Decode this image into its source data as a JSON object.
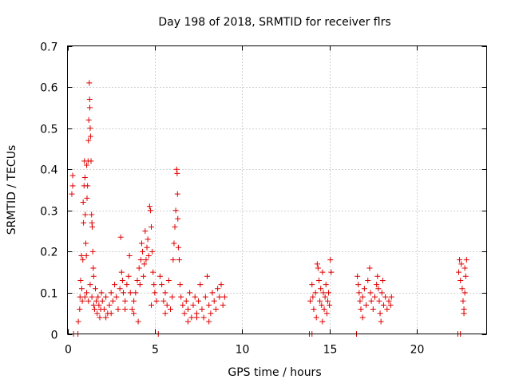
{
  "chart_data": {
    "type": "scatter",
    "title": "Day 198 of 2018, SRMTID for receiver flrs",
    "xlabel": "GPS time / hours",
    "ylabel": "SRMTID / TECUs",
    "xlim": [
      0,
      24
    ],
    "ylim": [
      0,
      0.7
    ],
    "xticks": [
      0,
      5,
      10,
      15,
      20
    ],
    "yticks": [
      0,
      0.1,
      0.2,
      0.3,
      0.4,
      0.5,
      0.6,
      0.7
    ],
    "grid": true,
    "legend": "none",
    "marker": "plus",
    "color": "#e00000",
    "series": [
      {
        "name": "SRMTID",
        "points": [
          [
            0.25,
            0.34
          ],
          [
            0.3,
            0.385
          ],
          [
            0.3,
            0.36
          ],
          [
            0.35,
            0.0
          ],
          [
            0.6,
            0.0
          ],
          [
            0.62,
            0.03
          ],
          [
            0.7,
            0.06
          ],
          [
            0.72,
            0.09
          ],
          [
            0.75,
            0.13
          ],
          [
            0.8,
            0.19
          ],
          [
            0.82,
            0.11
          ],
          [
            0.85,
            0.08
          ],
          [
            0.88,
            0.18
          ],
          [
            0.9,
            0.32
          ],
          [
            0.92,
            0.27
          ],
          [
            0.95,
            0.36
          ],
          [
            0.97,
            0.42
          ],
          [
            1.0,
            0.38
          ],
          [
            1.02,
            0.29
          ],
          [
            1.05,
            0.22
          ],
          [
            1.08,
            0.19
          ],
          [
            1.1,
            0.41
          ],
          [
            1.12,
            0.33
          ],
          [
            1.15,
            0.36
          ],
          [
            1.18,
            0.42
          ],
          [
            1.2,
            0.47
          ],
          [
            1.22,
            0.52
          ],
          [
            1.25,
            0.61
          ],
          [
            1.27,
            0.57
          ],
          [
            1.28,
            0.55
          ],
          [
            1.3,
            0.5
          ],
          [
            1.32,
            0.48
          ],
          [
            1.35,
            0.42
          ],
          [
            1.38,
            0.29
          ],
          [
            1.4,
            0.27
          ],
          [
            1.42,
            0.26
          ],
          [
            1.45,
            0.2
          ],
          [
            1.48,
            0.16
          ],
          [
            1.5,
            0.14
          ],
          [
            1.0,
            0.09
          ],
          [
            1.1,
            0.1
          ],
          [
            1.2,
            0.08
          ],
          [
            1.3,
            0.12
          ],
          [
            1.4,
            0.09
          ],
          [
            1.5,
            0.07
          ],
          [
            1.55,
            0.06
          ],
          [
            1.6,
            0.11
          ],
          [
            1.65,
            0.08
          ],
          [
            1.7,
            0.05
          ],
          [
            1.75,
            0.09
          ],
          [
            1.8,
            0.07
          ],
          [
            1.85,
            0.04
          ],
          [
            1.9,
            0.06
          ],
          [
            1.95,
            0.1
          ],
          [
            2.0,
            0.08
          ],
          [
            2.1,
            0.06
          ],
          [
            2.2,
            0.09
          ],
          [
            2.3,
            0.05
          ],
          [
            2.4,
            0.07
          ],
          [
            2.5,
            0.1
          ],
          [
            2.6,
            0.08
          ],
          [
            2.7,
            0.12
          ],
          [
            2.8,
            0.09
          ],
          [
            2.9,
            0.06
          ],
          [
            3.0,
            0.11
          ],
          [
            3.05,
            0.235
          ],
          [
            3.1,
            0.15
          ],
          [
            3.15,
            0.13
          ],
          [
            3.2,
            0.1
          ],
          [
            3.3,
            0.08
          ],
          [
            3.4,
            0.12
          ],
          [
            3.5,
            0.14
          ],
          [
            3.55,
            0.19
          ],
          [
            3.6,
            0.1
          ],
          [
            3.7,
            0.06
          ],
          [
            3.8,
            0.08
          ],
          [
            3.9,
            0.1
          ],
          [
            4.0,
            0.13
          ],
          [
            4.05,
            0.03
          ],
          [
            4.1,
            0.16
          ],
          [
            4.15,
            0.12
          ],
          [
            4.2,
            0.18
          ],
          [
            4.25,
            0.22
          ],
          [
            4.3,
            0.2
          ],
          [
            4.35,
            0.14
          ],
          [
            4.4,
            0.17
          ],
          [
            4.45,
            0.25
          ],
          [
            4.5,
            0.18
          ],
          [
            4.55,
            0.21
          ],
          [
            4.6,
            0.23
          ],
          [
            4.65,
            0.19
          ],
          [
            4.7,
            0.31
          ],
          [
            4.75,
            0.3
          ],
          [
            4.8,
            0.26
          ],
          [
            4.85,
            0.2
          ],
          [
            4.9,
            0.15
          ],
          [
            4.95,
            0.12
          ],
          [
            5.0,
            0.1
          ],
          [
            5.1,
            0.08
          ],
          [
            5.2,
            0.0
          ],
          [
            5.3,
            0.14
          ],
          [
            5.4,
            0.12
          ],
          [
            5.5,
            0.08
          ],
          [
            5.6,
            0.1
          ],
          [
            5.7,
            0.07
          ],
          [
            5.8,
            0.13
          ],
          [
            5.9,
            0.06
          ],
          [
            6.0,
            0.09
          ],
          [
            6.05,
            0.18
          ],
          [
            6.1,
            0.22
          ],
          [
            6.15,
            0.26
          ],
          [
            6.2,
            0.3
          ],
          [
            6.25,
            0.4
          ],
          [
            6.28,
            0.39
          ],
          [
            6.3,
            0.34
          ],
          [
            6.32,
            0.28
          ],
          [
            6.35,
            0.21
          ],
          [
            6.4,
            0.18
          ],
          [
            6.45,
            0.12
          ],
          [
            6.5,
            0.09
          ],
          [
            6.6,
            0.07
          ],
          [
            6.7,
            0.05
          ],
          [
            6.8,
            0.08
          ],
          [
            6.9,
            0.06
          ],
          [
            7.0,
            0.1
          ],
          [
            7.1,
            0.04
          ],
          [
            7.2,
            0.07
          ],
          [
            7.3,
            0.09
          ],
          [
            7.4,
            0.05
          ],
          [
            7.5,
            0.08
          ],
          [
            7.6,
            0.12
          ],
          [
            7.7,
            0.06
          ],
          [
            7.8,
            0.04
          ],
          [
            7.9,
            0.09
          ],
          [
            8.0,
            0.14
          ],
          [
            8.1,
            0.07
          ],
          [
            8.2,
            0.05
          ],
          [
            8.3,
            0.1
          ],
          [
            8.4,
            0.08
          ],
          [
            8.5,
            0.06
          ],
          [
            8.6,
            0.11
          ],
          [
            8.7,
            0.09
          ],
          [
            8.8,
            0.12
          ],
          [
            8.9,
            0.07
          ],
          [
            9.0,
            0.09
          ],
          [
            2.2,
            0.04
          ],
          [
            2.5,
            0.05
          ],
          [
            3.3,
            0.06
          ],
          [
            3.8,
            0.05
          ],
          [
            4.8,
            0.07
          ],
          [
            5.6,
            0.05
          ],
          [
            6.9,
            0.03
          ],
          [
            7.4,
            0.04
          ],
          [
            8.1,
            0.03
          ],
          [
            13.85,
            0.0
          ],
          [
            14.0,
            0.0
          ],
          [
            13.9,
            0.08
          ],
          [
            14.0,
            0.12
          ],
          [
            14.05,
            0.09
          ],
          [
            14.1,
            0.06
          ],
          [
            14.2,
            0.1
          ],
          [
            14.3,
            0.17
          ],
          [
            14.35,
            0.16
          ],
          [
            14.4,
            0.13
          ],
          [
            14.45,
            0.08
          ],
          [
            14.5,
            0.11
          ],
          [
            14.55,
            0.07
          ],
          [
            14.6,
            0.15
          ],
          [
            14.65,
            0.1
          ],
          [
            14.7,
            0.06
          ],
          [
            14.75,
            0.09
          ],
          [
            14.8,
            0.12
          ],
          [
            14.85,
            0.05
          ],
          [
            14.9,
            0.08
          ],
          [
            14.95,
            0.1
          ],
          [
            15.0,
            0.07
          ],
          [
            15.05,
            0.18
          ],
          [
            15.1,
            0.15
          ],
          [
            14.25,
            0.04
          ],
          [
            14.6,
            0.03
          ],
          [
            16.55,
            0.0
          ],
          [
            16.6,
            0.14
          ],
          [
            16.65,
            0.12
          ],
          [
            16.7,
            0.1
          ],
          [
            16.75,
            0.08
          ],
          [
            16.8,
            0.06
          ],
          [
            16.9,
            0.09
          ],
          [
            17.0,
            0.11
          ],
          [
            17.1,
            0.07
          ],
          [
            17.2,
            0.13
          ],
          [
            17.3,
            0.16
          ],
          [
            17.35,
            0.1
          ],
          [
            17.4,
            0.08
          ],
          [
            17.5,
            0.06
          ],
          [
            17.6,
            0.09
          ],
          [
            17.7,
            0.12
          ],
          [
            17.75,
            0.14
          ],
          [
            17.8,
            0.11
          ],
          [
            17.85,
            0.08
          ],
          [
            17.9,
            0.05
          ],
          [
            18.0,
            0.1
          ],
          [
            18.05,
            0.13
          ],
          [
            18.1,
            0.07
          ],
          [
            18.2,
            0.09
          ],
          [
            18.3,
            0.06
          ],
          [
            18.4,
            0.08
          ],
          [
            18.5,
            0.07
          ],
          [
            18.55,
            0.09
          ],
          [
            16.9,
            0.04
          ],
          [
            17.95,
            0.03
          ],
          [
            22.35,
            0.0
          ],
          [
            22.5,
            0.0
          ],
          [
            22.4,
            0.15
          ],
          [
            22.45,
            0.18
          ],
          [
            22.5,
            0.13
          ],
          [
            22.55,
            0.17
          ],
          [
            22.6,
            0.11
          ],
          [
            22.65,
            0.08
          ],
          [
            22.7,
            0.06
          ],
          [
            22.75,
            0.16
          ],
          [
            22.8,
            0.14
          ],
          [
            22.85,
            0.18
          ],
          [
            22.7,
            0.05
          ],
          [
            22.75,
            0.1
          ]
        ]
      }
    ]
  }
}
